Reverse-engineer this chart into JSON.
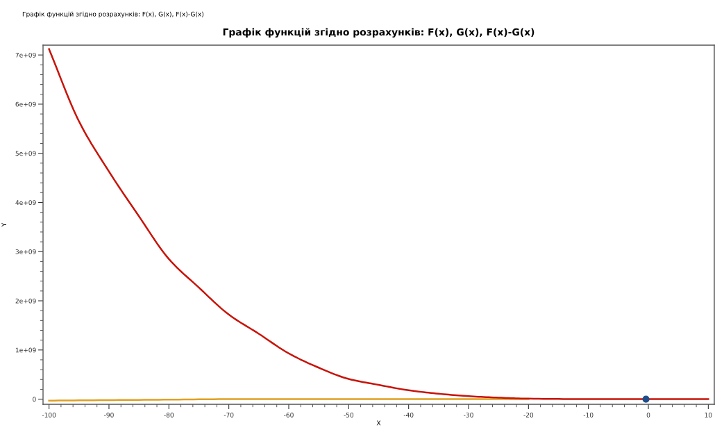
{
  "chart_data": {
    "type": "line",
    "title": "Графік функцій згідно розрахунків: F(x), G(x), F(x)-G(x)",
    "xlabel": "X",
    "ylabel": "Y",
    "annotations": [
      "Графік функцій згідно розрахунків: F(x), G(x), F(x)-G(x)"
    ],
    "series": [
      {
        "color": "#e0a020",
        "x": [
          -100,
          -90,
          -80,
          -70,
          -60,
          -50,
          -40,
          -30,
          -20
        ],
        "values": [
          -30000000,
          -20000000,
          -10000000,
          0,
          0,
          0,
          0,
          0,
          0
        ]
      },
      {
        "color": "#c8140a",
        "x": [
          -100,
          -95,
          -90,
          -85,
          -80,
          -75,
          -70,
          -65,
          -60,
          -55,
          -50,
          -45,
          -40,
          -35,
          -30,
          -25,
          -20,
          -10,
          0,
          10
        ],
        "values": [
          7120000000,
          5650000000,
          4630000000,
          3720000000,
          2850000000,
          2270000000,
          1720000000,
          1330000000,
          930000000,
          640000000,
          410000000,
          290000000,
          180000000,
          110000000,
          60000000,
          30000000,
          10000000,
          0,
          0,
          0
        ]
      },
      {
        "type": "scatter",
        "color": "#1f4e8c",
        "marker": "circle",
        "x": [
          -0.4
        ],
        "values": [
          0
        ]
      }
    ],
    "xlim": [
      -101,
      11
    ],
    "ylim": [
      -105000000,
      7200000000
    ],
    "xticks": [
      -100,
      {
        "value": -98,
        "label": null
      },
      {
        "value": -96,
        "label": null
      },
      {
        "value": -94,
        "label": null
      },
      {
        "value": -92,
        "label": null
      },
      -90,
      {
        "value": -88,
        "label": null
      },
      {
        "value": -86,
        "label": null
      },
      {
        "value": -84,
        "label": null
      },
      {
        "value": -82,
        "label": null
      },
      -80,
      {
        "value": -78,
        "label": null
      },
      {
        "value": -76,
        "label": null
      },
      {
        "value": -74,
        "label": null
      },
      {
        "value": -72,
        "label": null
      },
      -70,
      {
        "value": -68,
        "label": null
      },
      {
        "value": -66,
        "label": null
      },
      {
        "value": -64,
        "label": null
      },
      {
        "value": -62,
        "label": null
      },
      -60,
      {
        "value": -58,
        "label": null
      },
      {
        "value": -56,
        "label": null
      },
      {
        "value": -54,
        "label": null
      },
      {
        "value": -52,
        "label": null
      },
      -50,
      {
        "value": -48,
        "label": null
      },
      {
        "value": -46,
        "label": null
      },
      {
        "value": -44,
        "label": null
      },
      {
        "value": -42,
        "label": null
      },
      -40,
      {
        "value": -38,
        "label": null
      },
      {
        "value": -36,
        "label": null
      },
      {
        "value": -34,
        "label": null
      },
      {
        "value": -32,
        "label": null
      },
      -30,
      {
        "value": -28,
        "label": null
      },
      {
        "value": -26,
        "label": null
      },
      {
        "value": -24,
        "label": null
      },
      {
        "value": -22,
        "label": null
      },
      -20,
      {
        "value": -18,
        "label": null
      },
      {
        "value": -16,
        "label": null
      },
      {
        "value": -14,
        "label": null
      },
      {
        "value": -12,
        "label": null
      },
      -10,
      {
        "value": -8,
        "label": null
      },
      {
        "value": -6,
        "label": null
      },
      {
        "value": -4,
        "label": null
      },
      {
        "value": -2,
        "label": null
      },
      0,
      {
        "value": 2,
        "label": null
      },
      {
        "value": 4,
        "label": null
      },
      {
        "value": 6,
        "label": null
      },
      {
        "value": 8,
        "label": null
      },
      10
    ],
    "yticks": [
      0,
      {
        "value": 200000000,
        "label": null
      },
      {
        "value": 400000000,
        "label": null
      },
      {
        "value": 600000000,
        "label": null
      },
      {
        "value": 800000000,
        "label": null
      },
      {
        "value": 1000000000,
        "label": "1e+09"
      },
      {
        "value": 1200000000,
        "label": null
      },
      {
        "value": 1400000000,
        "label": null
      },
      {
        "value": 1600000000,
        "label": null
      },
      {
        "value": 1800000000,
        "label": null
      },
      {
        "value": 2000000000,
        "label": "2e+09"
      },
      {
        "value": 2200000000,
        "label": null
      },
      {
        "value": 2400000000,
        "label": null
      },
      {
        "value": 2600000000,
        "label": null
      },
      {
        "value": 2800000000,
        "label": null
      },
      {
        "value": 3000000000,
        "label": "3e+09"
      },
      {
        "value": 3200000000,
        "label": null
      },
      {
        "value": 3400000000,
        "label": null
      },
      {
        "value": 3600000000,
        "label": null
      },
      {
        "value": 3800000000,
        "label": null
      },
      {
        "value": 4000000000,
        "label": "4e+09"
      },
      {
        "value": 4200000000,
        "label": null
      },
      {
        "value": 4400000000,
        "label": null
      },
      {
        "value": 4600000000,
        "label": null
      },
      {
        "value": 4800000000,
        "label": null
      },
      {
        "value": 5000000000,
        "label": "5e+09"
      },
      {
        "value": 5200000000,
        "label": null
      },
      {
        "value": 5400000000,
        "label": null
      },
      {
        "value": 5600000000,
        "label": null
      },
      {
        "value": 5800000000,
        "label": null
      },
      {
        "value": 6000000000,
        "label": "6e+09"
      },
      {
        "value": 6200000000,
        "label": null
      },
      {
        "value": 6400000000,
        "label": null
      },
      {
        "value": 6600000000,
        "label": null
      },
      {
        "value": 6800000000,
        "label": null
      },
      {
        "value": 7000000000,
        "label": "7e+09"
      }
    ],
    "grid": false,
    "line_style": "solid"
  }
}
